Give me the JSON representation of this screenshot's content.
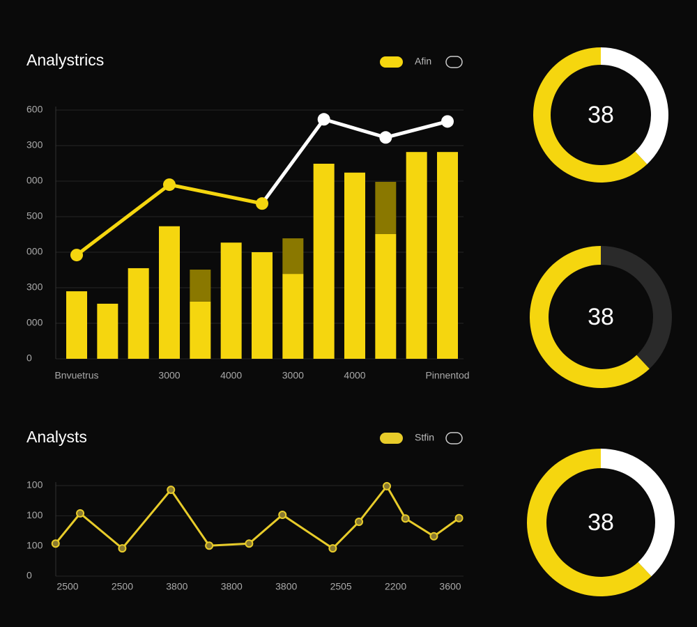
{
  "chart_data": [
    {
      "type": "bar",
      "title": "Analystrics",
      "stacked": true,
      "grid": true,
      "categories": [
        "Bnvuetrus",
        null,
        null,
        "3000",
        null,
        "4000",
        null,
        "3000",
        null,
        "4000",
        null,
        null,
        "Pinnentod"
      ],
      "ylim": [
        0,
        700
      ],
      "yticks": [
        0,
        {
          "value": 100,
          "label": "000"
        },
        {
          "value": 200,
          "label": "300"
        },
        {
          "value": 300,
          "label": "000"
        },
        {
          "value": 400,
          "label": "500"
        },
        {
          "value": 500,
          "label": "000"
        },
        {
          "value": 600,
          "label": "300"
        },
        {
          "value": 700,
          "label": "600"
        }
      ],
      "series": [
        {
          "name": "Afin",
          "color": "#f5d60f",
          "values": [
            190,
            155,
            255,
            373,
            161,
            327,
            300,
            239,
            549,
            524,
            351,
            582,
            582
          ]
        },
        {
          "color": "#8a7800",
          "values": [
            null,
            null,
            null,
            null,
            90,
            null,
            null,
            100,
            null,
            null,
            147,
            null,
            null
          ]
        },
        {
          "type": "line",
          "color": "#f5d60f",
          "segment_colors": [
            "#f5d60f",
            "#f5d60f",
            "#ffffff",
            "#ffffff",
            "#ffffff"
          ],
          "x": [
            0,
            3,
            6,
            8,
            10,
            12
          ],
          "values": [
            292,
            490,
            437,
            674,
            623,
            668
          ]
        }
      ]
    },
    {
      "type": "line",
      "title": "Analysts",
      "grid": true,
      "categories": [
        "2500",
        "2500",
        "3800",
        "3800",
        "3800",
        "2505",
        "2200",
        "3600"
      ],
      "ylim": [
        0,
        300
      ],
      "yticks": [
        0,
        100,
        {
          "value": 200,
          "label": "100"
        },
        {
          "value": 300,
          "label": "100"
        }
      ],
      "series": [
        {
          "name": "Stfin",
          "color": "#e8cc2a",
          "x": [
            -0.22,
            0.23,
            1.0,
            1.89,
            2.59,
            3.32,
            3.93,
            4.85,
            5.33,
            5.84,
            6.18,
            6.7,
            7.16
          ],
          "values": [
            108,
            208,
            92,
            286,
            101,
            108,
            203,
            92,
            180,
            298,
            191,
            132,
            192
          ]
        }
      ]
    },
    {
      "type": "donut",
      "center_value": 38,
      "values": [
        38,
        62
      ],
      "colors": [
        "#ffffff",
        "#f5d60f"
      ]
    },
    {
      "type": "donut",
      "center_value": 38,
      "values": [
        38,
        62
      ],
      "colors": [
        "#2a2a2a",
        "#f5d60f"
      ]
    },
    {
      "type": "donut",
      "center_value": 38,
      "values": [
        38,
        62
      ],
      "colors": [
        "#ffffff",
        "#f5d60f"
      ]
    }
  ]
}
